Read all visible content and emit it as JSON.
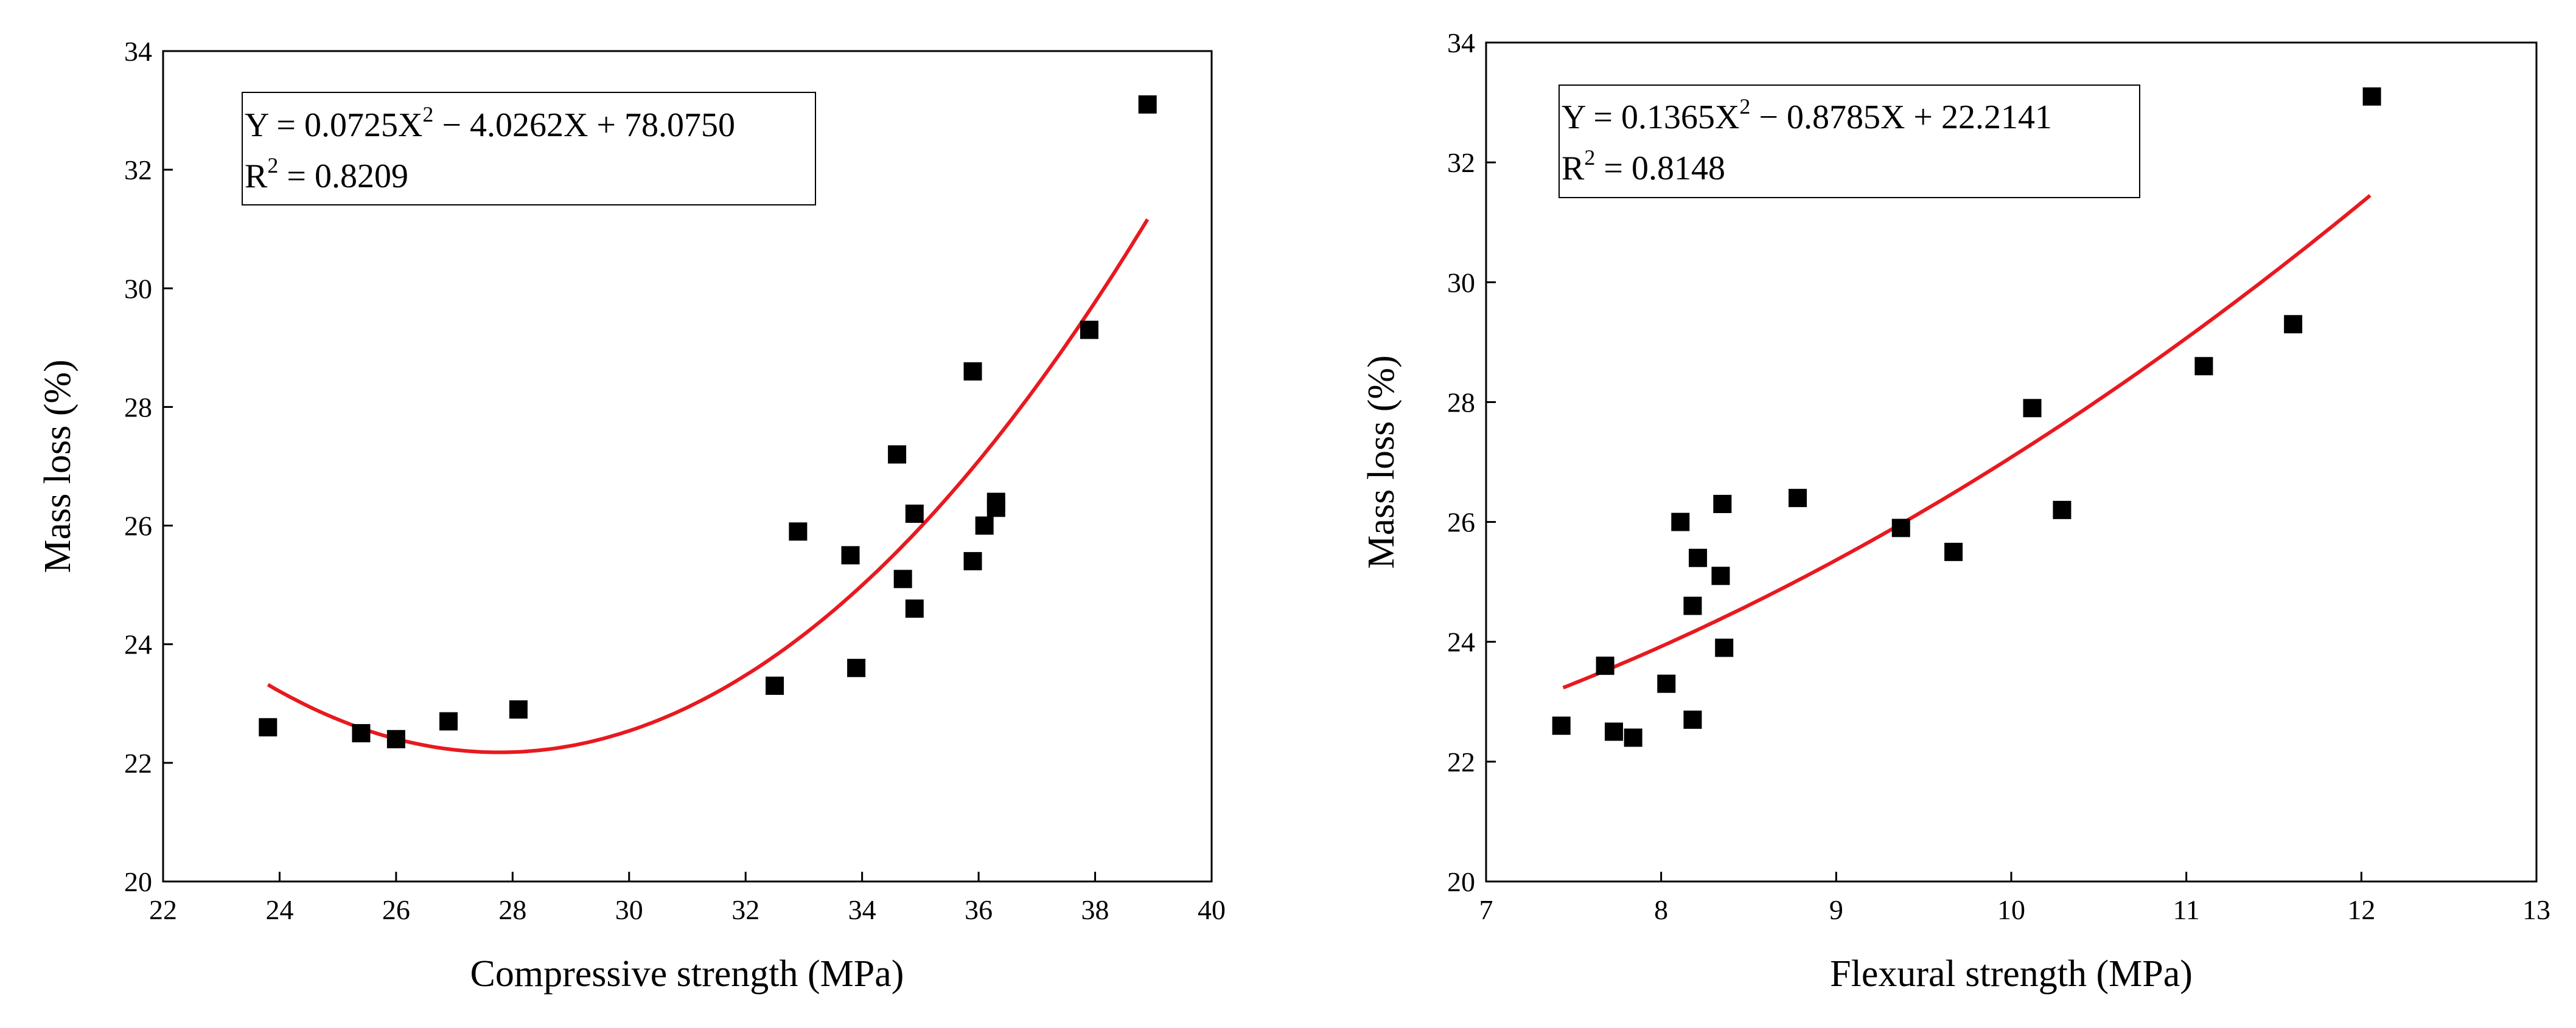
{
  "chart_data": [
    {
      "type": "scatter",
      "title": "",
      "xlabel": "Compressive strength (MPa)",
      "ylabel": "Mass loss (%)",
      "xlim": [
        22,
        40
      ],
      "ylim": [
        20,
        34
      ],
      "xticks": [
        22,
        24,
        26,
        28,
        30,
        32,
        34,
        36,
        38,
        40
      ],
      "yticks": [
        20,
        22,
        24,
        26,
        28,
        30,
        32,
        34
      ],
      "marker_color": "#000000",
      "fit_color": "#e8191f",
      "fit": {
        "a": 0.0725,
        "b": -4.0262,
        "c": 78.075,
        "xmin": 23.8,
        "xmax": 38.9
      },
      "equation": {
        "prefix": "Y = 0.0725X",
        "sup": "2",
        "suffix": " − 4.0262X + 78.0750"
      },
      "r2": {
        "prefix": "R",
        "sup": "2",
        "suffix": " = 0.8209"
      },
      "points": {
        "x": [
          23.8,
          25.4,
          26.0,
          26.9,
          28.1,
          32.5,
          32.9,
          33.8,
          33.9,
          34.6,
          34.7,
          34.9,
          34.9,
          35.9,
          35.9,
          36.1,
          36.3,
          36.3,
          37.9,
          38.9
        ],
        "y": [
          22.6,
          22.5,
          22.4,
          22.7,
          22.9,
          23.3,
          25.9,
          25.5,
          23.6,
          27.2,
          25.1,
          24.6,
          26.2,
          28.6,
          25.4,
          26.0,
          26.4,
          26.3,
          29.3,
          33.1
        ]
      }
    },
    {
      "type": "scatter",
      "title": "",
      "xlabel": "Flexural strength (MPa)",
      "ylabel": "Mass loss (%)",
      "xlim": [
        7,
        13
      ],
      "ylim": [
        20,
        34
      ],
      "xticks": [
        7,
        8,
        9,
        10,
        11,
        12,
        13
      ],
      "yticks": [
        20,
        22,
        24,
        26,
        28,
        30,
        32,
        34
      ],
      "marker_color": "#000000",
      "fit_color": "#e8191f",
      "fit": {
        "a": 0.1365,
        "b": -0.8785,
        "c": 22.2141,
        "xmin": 7.44,
        "xmax": 12.05
      },
      "equation": {
        "prefix": "Y = 0.1365X",
        "sup": "2",
        "suffix": " − 0.8785X + 22.2141"
      },
      "r2": {
        "prefix": "R",
        "sup": "2",
        "suffix": " = 0.8148"
      },
      "points": {
        "x": [
          7.43,
          7.68,
          7.73,
          7.84,
          8.03,
          8.11,
          8.18,
          8.18,
          8.21,
          8.34,
          8.35,
          8.36,
          8.78,
          9.37,
          9.67,
          10.12,
          10.29,
          11.1,
          11.61,
          12.06
        ],
        "y": [
          22.6,
          23.6,
          22.5,
          22.4,
          23.3,
          26.0,
          24.6,
          22.7,
          25.4,
          25.1,
          26.3,
          23.9,
          26.4,
          25.9,
          25.5,
          27.9,
          26.2,
          28.6,
          29.3,
          33.1
        ]
      }
    }
  ]
}
